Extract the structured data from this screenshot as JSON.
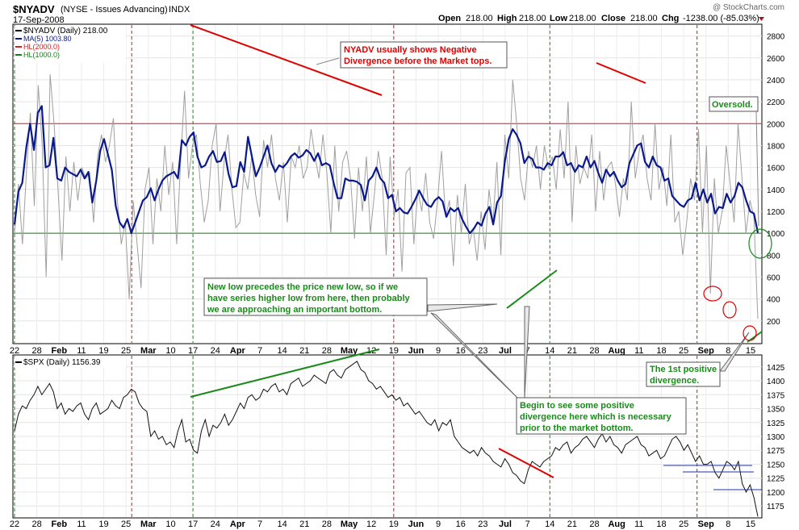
{
  "header": {
    "symbol": "$NYADV",
    "description": "(NYSE - Issues Advancing)",
    "exchange": "INDX",
    "date": "17-Sep-2008",
    "watermark": "@ StockCharts.com",
    "quote": {
      "open_label": "Open",
      "open": "218.00",
      "high_label": "High",
      "high": "218.00",
      "low_label": "Low",
      "low": "218.00",
      "close_label": "Close",
      "close": "218.00",
      "chg_label": "Chg",
      "chg": "-1238.00 (-85.03%)"
    }
  },
  "colors": {
    "raw": "#a0a0a0",
    "ma": "#0a1a8c",
    "hl2000": "#d42020",
    "hl1000": "#1a7a1a",
    "spx": "#111111",
    "annotation_red": "#e00000",
    "annotation_green": "#1a8a1a"
  },
  "x_axis": {
    "labels": [
      "22",
      "28",
      "Feb",
      "11",
      "19",
      "25",
      "Mar",
      "10",
      "17",
      "24",
      "Apr",
      "7",
      "14",
      "21",
      "28",
      "May",
      "12",
      "19",
      "Jun",
      "9",
      "16",
      "23",
      "Jul",
      "7",
      "14",
      "21",
      "28",
      "Aug",
      "11",
      "18",
      "25",
      "Sep",
      "8",
      "15"
    ],
    "bold_labels": [
      "Feb",
      "Mar",
      "Apr",
      "May",
      "Jun",
      "Jul",
      "Aug",
      "Sep"
    ]
  },
  "annotations": {
    "nyadv_divergence": [
      "NYADV usually shows Negative",
      "Divergence before the Market tops."
    ],
    "new_low": [
      "New low precedes the price new low, so if we",
      "have series higher low from here, then probably",
      "we are approaching an important bottom."
    ],
    "oversold": "Oversold.",
    "first_positive": [
      "The 1st positive",
      "divergence."
    ],
    "begin_positive": [
      "Begin to see some positive",
      "divergence here which is necessary",
      "prior to the market bottom."
    ]
  },
  "chart_data": [
    {
      "type": "line",
      "panel": "top",
      "legend": [
        {
          "label": "$NYADV (Daily) 218.00",
          "color": "#000000"
        },
        {
          "label": "MA(5) 1003.80",
          "color": "#0a1a8c"
        },
        {
          "label": "HL(2000.0)",
          "color": "#d42020"
        },
        {
          "label": "HL(1000.0)",
          "color": "#1a7a1a"
        }
      ],
      "ylim": [
        0,
        2900
      ],
      "yticks": [
        200,
        400,
        600,
        800,
        1000,
        1200,
        1400,
        1600,
        1800,
        2000,
        2200,
        2400,
        2600,
        2800
      ],
      "hlines": [
        2000,
        1000
      ],
      "series": [
        {
          "name": "$NYADV (Daily) 218.00",
          "values": [
            1000,
            1450,
            900,
            1550,
            2100,
            1250,
            2350,
            1800,
            600,
            2450,
            2000,
            1400,
            750,
            1700,
            1200,
            1650,
            1300,
            1600,
            1500,
            1550,
            1100,
            1700,
            1900,
            1650,
            1800,
            2050,
            1300,
            900,
            1100,
            400,
            1300,
            900,
            500,
            1400,
            1600,
            900,
            1500,
            1200,
            1800,
            1350,
            1650,
            900,
            1650,
            2300,
            1500,
            1800,
            1900,
            1450,
            1100,
            1300,
            1800,
            2000,
            1200,
            1650,
            1900,
            1400,
            1050,
            1100,
            1550,
            1400,
            1700,
            1350,
            1150,
            1850,
            1600,
            1900,
            1500,
            1300,
            1650,
            1100,
            1700,
            1600,
            1800,
            1500,
            1600,
            1950,
            1700,
            1500,
            1900,
            1550,
            1000,
            1800,
            1200,
            1650,
            1750,
            1500,
            950,
            1600,
            1200,
            1700,
            1000,
            1350,
            1750,
            1500,
            800,
            1700,
            1150,
            1400,
            650,
            1550,
            1600,
            900,
            1400,
            1200,
            1550,
            1100,
            950,
            1300,
            1750,
            1150,
            1300,
            700,
            1350,
            1000,
            1450,
            900,
            1050,
            750,
            1200,
            850,
            1400,
            1100,
            1650,
            800,
            1900,
            1500,
            2400,
            2000,
            1500,
            1300,
            1750,
            1600,
            1800,
            1400,
            1800,
            1600,
            1700,
            1400,
            1950,
            1500,
            2200,
            1100,
            1800,
            1450,
            1600,
            1500,
            1900,
            1200,
            1750,
            1300,
            1600,
            1650,
            1450,
            1150,
            1500,
            1300,
            2200,
            1500,
            1750,
            1900,
            1500,
            1300,
            2000,
            1400,
            1600,
            1250,
            1900,
            1100,
            1200,
            800,
            1100,
            1500,
            1300,
            1950,
            1000,
            1800,
            450,
            1500,
            1000,
            1200,
            1800,
            1450,
            1100,
            2000,
            1500,
            1000,
            1300,
            1150,
            218
          ]
        },
        {
          "name": "MA(5) 1003.80",
          "values": [
            1080,
            1380,
            1460,
            1780,
            2000,
            1760,
            2100,
            2160,
            1600,
            1620,
            1870,
            1500,
            1480,
            1600,
            1560,
            1540,
            1520,
            1580,
            1500,
            1560,
            1280,
            1480,
            1750,
            1860,
            1720,
            1580,
            1250,
            1100,
            1050,
            1130,
            1000,
            1100,
            1200,
            1300,
            1330,
            1410,
            1300,
            1400,
            1480,
            1520,
            1540,
            1560,
            1500,
            1850,
            1800,
            1880,
            1920,
            1700,
            1600,
            1620,
            1700,
            1750,
            1650,
            1660,
            1740,
            1540,
            1420,
            1430,
            1650,
            1560,
            1880,
            1700,
            1520,
            1600,
            1700,
            1800,
            1640,
            1560,
            1620,
            1600,
            1640,
            1700,
            1730,
            1690,
            1710,
            1760,
            1730,
            1660,
            1730,
            1620,
            1640,
            1620,
            1460,
            1320,
            1320,
            1500,
            1480,
            1480,
            1470,
            1440,
            1300,
            1480,
            1520,
            1600,
            1500,
            1460,
            1320,
            1350,
            1200,
            1230,
            1190,
            1180,
            1240,
            1310,
            1390,
            1320,
            1260,
            1240,
            1300,
            1330,
            1290,
            1150,
            1230,
            1200,
            1230,
            1130,
            1060,
            1000,
            1040,
            1100,
            1070,
            1180,
            1240,
            1080,
            1280,
            1340,
            1660,
            1860,
            1950,
            1900,
            1820,
            1640,
            1700,
            1680,
            1600,
            1600,
            1580,
            1640,
            1620,
            1700,
            1700,
            1740,
            1620,
            1640,
            1560,
            1620,
            1600,
            1700,
            1600,
            1660,
            1550,
            1460,
            1580,
            1520,
            1560,
            1480,
            1420,
            1450,
            1640,
            1720,
            1800,
            1820,
            1650,
            1600,
            1700,
            1620,
            1600,
            1480,
            1500,
            1340,
            1300,
            1260,
            1240,
            1300,
            1320,
            1460,
            1300,
            1400,
            1280,
            1360,
            1180,
            1240,
            1230,
            1360,
            1280,
            1340,
            1460,
            1420,
            1300,
            1200,
            1180,
            1004
          ]
        }
      ]
    },
    {
      "type": "line",
      "panel": "bottom",
      "legend": [
        {
          "label": "$SPX (Daily) 1156.39",
          "color": "#000000"
        }
      ],
      "ylim": [
        1155,
        1445
      ],
      "yticks": [
        1175,
        1200,
        1225,
        1250,
        1275,
        1300,
        1325,
        1350,
        1375,
        1400,
        1425
      ],
      "series": [
        {
          "name": "$SPX (Daily) 1156.39",
          "values": [
            1310,
            1340,
            1355,
            1350,
            1365,
            1375,
            1390,
            1375,
            1385,
            1395,
            1380,
            1350,
            1360,
            1340,
            1350,
            1345,
            1355,
            1360,
            1340,
            1330,
            1350,
            1360,
            1340,
            1345,
            1350,
            1365,
            1355,
            1350,
            1370,
            1375,
            1385,
            1380,
            1360,
            1350,
            1345,
            1300,
            1310,
            1295,
            1300,
            1285,
            1290,
            1280,
            1310,
            1330,
            1290,
            1295,
            1275,
            1270,
            1310,
            1330,
            1300,
            1320,
            1315,
            1325,
            1340,
            1320,
            1330,
            1345,
            1360,
            1350,
            1370,
            1375,
            1365,
            1370,
            1385,
            1380,
            1390,
            1395,
            1380,
            1385,
            1375,
            1395,
            1400,
            1405,
            1390,
            1395,
            1400,
            1410,
            1405,
            1400,
            1395,
            1415,
            1420,
            1410,
            1405,
            1420,
            1425,
            1430,
            1435,
            1420,
            1415,
            1400,
            1395,
            1385,
            1390,
            1380,
            1370,
            1375,
            1365,
            1370,
            1355,
            1360,
            1350,
            1340,
            1345,
            1335,
            1325,
            1320,
            1330,
            1310,
            1325,
            1320,
            1330,
            1300,
            1290,
            1280,
            1275,
            1270,
            1275,
            1265,
            1280,
            1270,
            1265,
            1255,
            1250,
            1245,
            1260,
            1250,
            1235,
            1230,
            1220,
            1215,
            1240,
            1255,
            1250,
            1245,
            1255,
            1260,
            1265,
            1280,
            1275,
            1285,
            1290,
            1270,
            1280,
            1285,
            1295,
            1300,
            1290,
            1280,
            1295,
            1305,
            1290,
            1300,
            1285,
            1280,
            1270,
            1285,
            1290,
            1295,
            1300,
            1285,
            1280,
            1265,
            1270,
            1275,
            1260,
            1265,
            1280,
            1295,
            1300,
            1290,
            1275,
            1285,
            1270,
            1255,
            1265,
            1250,
            1250,
            1255,
            1235,
            1225,
            1240,
            1255,
            1250,
            1240,
            1255,
            1215,
            1200,
            1213,
            1190,
            1156
          ]
        }
      ]
    }
  ]
}
